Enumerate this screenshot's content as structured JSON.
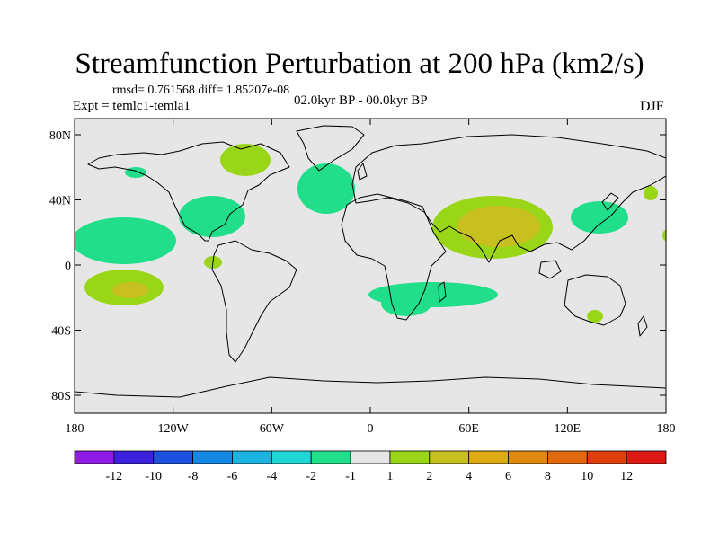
{
  "title": "Streamfunction Perturbation at 200 hPa (km2/s)",
  "stats": "rmsd= 0.761568 diff= 1.85207e-08",
  "experiment": "Expt = temlc1-temla1",
  "period": "02.0kyr BP - 00.0kyr BP",
  "season": "DJF",
  "colors": {
    "background": "#e6e6e6",
    "coast": "#000000",
    "neg_1_2": "#21de8a",
    "pos_1_2": "#9ad618",
    "pos_2_4": "#c8c021"
  },
  "map": {
    "lat_ticks": [
      {
        "value": 80,
        "label": "80N"
      },
      {
        "value": 40,
        "label": "40N"
      },
      {
        "value": 0,
        "label": "0"
      },
      {
        "value": -40,
        "label": "40S"
      },
      {
        "value": -80,
        "label": "80S"
      }
    ],
    "lon_ticks": [
      {
        "value": -180,
        "label": "180"
      },
      {
        "value": -120,
        "label": "120W"
      },
      {
        "value": -60,
        "label": "60W"
      },
      {
        "value": 0,
        "label": "0"
      },
      {
        "value": 60,
        "label": "60E"
      },
      {
        "value": 120,
        "label": "120E"
      },
      {
        "value": 180,
        "label": "180"
      }
    ]
  },
  "colorbar": {
    "colors": [
      "#8f1be6",
      "#3b20dc",
      "#1e52de",
      "#1588e4",
      "#1cb3e0",
      "#1fd6d4",
      "#21de8a",
      "#e6e6e6",
      "#9ad618",
      "#c8c021",
      "#deab14",
      "#e08911",
      "#e0690f",
      "#de3f0d",
      "#dc1a13"
    ],
    "labels": [
      "-12",
      "-10",
      "-8",
      "-6",
      "-4",
      "-2",
      "-1",
      "1",
      "2",
      "4",
      "6",
      "8",
      "10",
      "12"
    ]
  }
}
